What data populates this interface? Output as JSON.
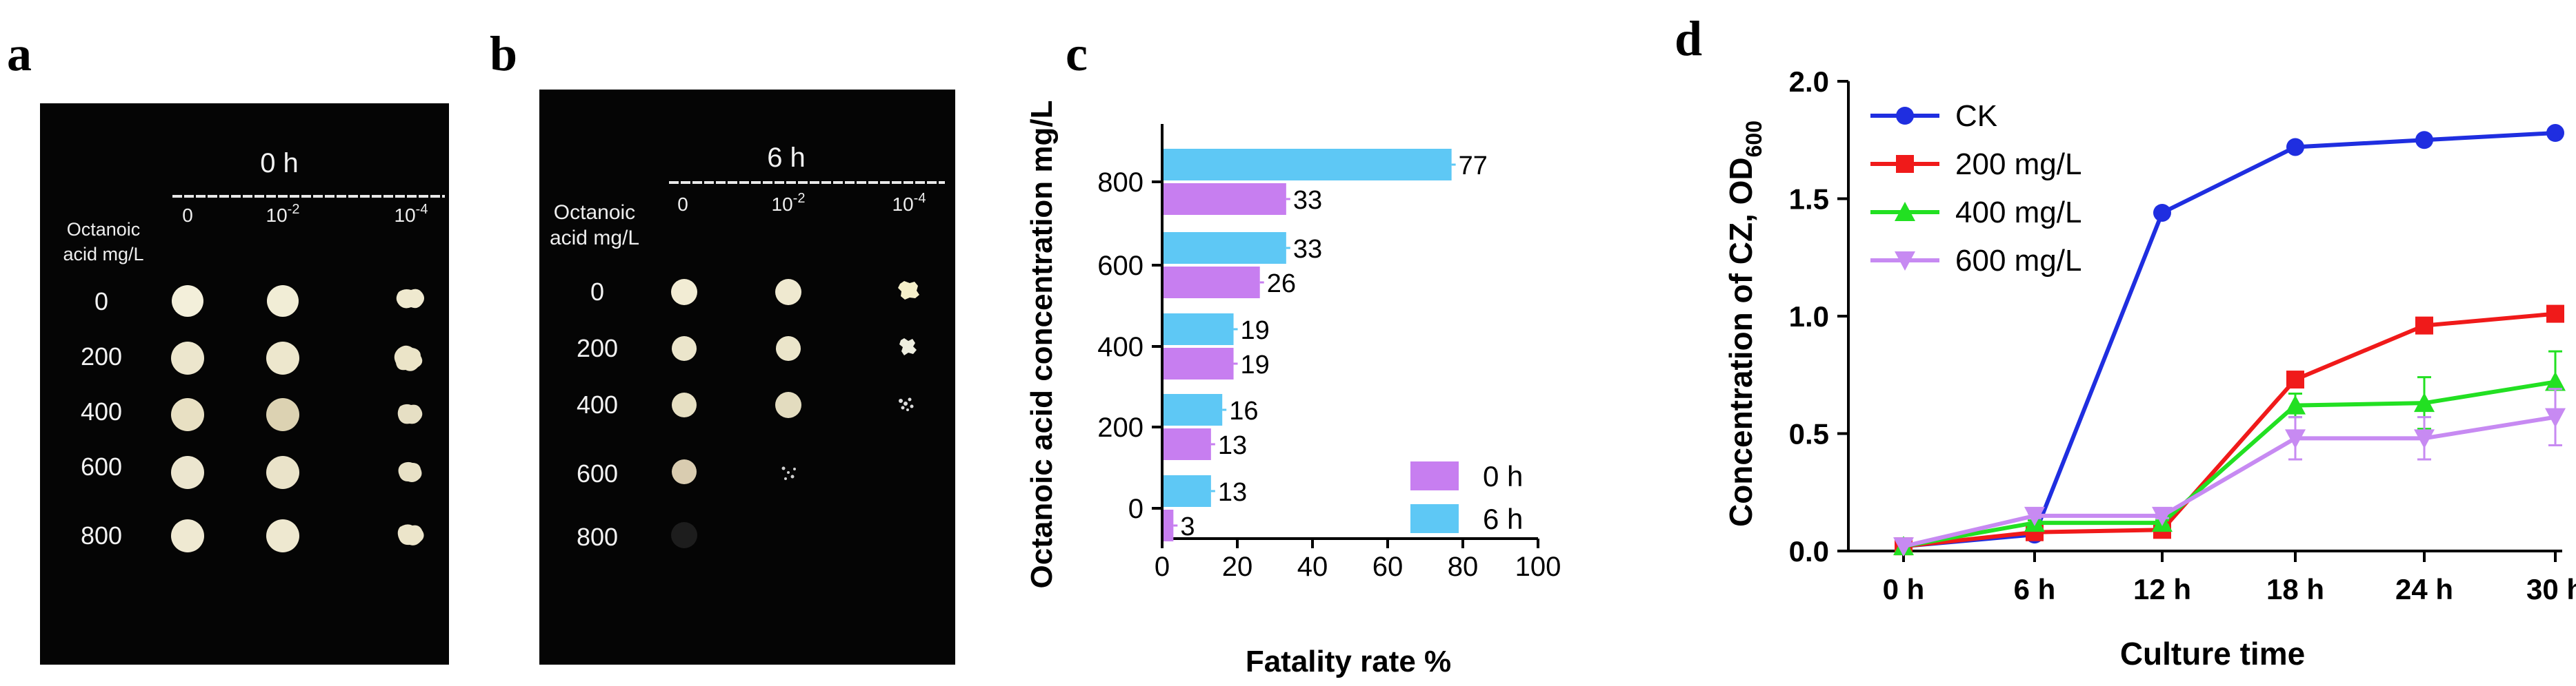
{
  "panels": {
    "a": {
      "letter": "a",
      "time": "0 h",
      "ylabel_line1": "Octanoic",
      "ylabel_line2": "acid mg/L",
      "dilutions": [
        {
          "base": "0",
          "exp": ""
        },
        {
          "base": "10",
          "exp": "-2"
        },
        {
          "base": "10",
          "exp": "-4"
        }
      ],
      "concentrations": [
        "0",
        "200",
        "400",
        "600",
        "800"
      ]
    },
    "b": {
      "letter": "b",
      "time": "6 h",
      "ylabel_line1": "Octanoic",
      "ylabel_line2": "acid mg/L",
      "dilutions": [
        {
          "base": "0",
          "exp": ""
        },
        {
          "base": "10",
          "exp": "-2"
        },
        {
          "base": "10",
          "exp": "-4"
        }
      ],
      "concentrations": [
        "0",
        "200",
        "400",
        "600",
        "800"
      ]
    },
    "c": {
      "letter": "c"
    },
    "d": {
      "letter": "d"
    }
  },
  "chart_data": [
    {
      "id": "c",
      "type": "bar",
      "orientation": "horizontal",
      "categories": [
        "800",
        "600",
        "400",
        "200",
        "0"
      ],
      "series": [
        {
          "name": "6 h",
          "color": "#5ec8f5",
          "values": [
            77,
            33,
            19,
            16,
            13
          ],
          "labels": [
            "77",
            "33",
            "19",
            "16",
            "13"
          ]
        },
        {
          "name": "0 h",
          "color": "#c77ef0",
          "values": [
            33,
            26,
            19,
            13,
            3
          ],
          "labels": [
            "33",
            "26",
            "19",
            "13",
            "3"
          ]
        }
      ],
      "xlabel": "Fatality rate  %",
      "ylabel": "Octanoic acid concentration mg/L",
      "xlim": [
        0,
        100
      ],
      "xticks": [
        "0",
        "20",
        "40",
        "60",
        "80",
        "100"
      ],
      "yticks": [
        "800",
        "600",
        "400",
        "200",
        "0"
      ],
      "legend": [
        "0 h",
        "6 h"
      ],
      "legend_position": "bottom-right"
    },
    {
      "id": "d",
      "type": "line",
      "categories": [
        "0 h",
        "6 h",
        "12 h",
        "18 h",
        "24 h",
        "30 h"
      ],
      "series": [
        {
          "name": "CK",
          "color": "#1f2ee0",
          "marker": "circle",
          "values": [
            0.02,
            0.07,
            1.44,
            1.72,
            1.75,
            1.78
          ],
          "err": [
            0,
            0,
            0.02,
            0.02,
            0.01,
            0.01
          ]
        },
        {
          "name": "200 mg/L",
          "color": "#f01a1a",
          "marker": "square",
          "values": [
            0.02,
            0.08,
            0.09,
            0.73,
            0.96,
            1.01
          ],
          "err": [
            0,
            0.01,
            0.01,
            0.03,
            0.03,
            0.03
          ]
        },
        {
          "name": "400 mg/L",
          "color": "#22e022",
          "marker": "triangle-up",
          "values": [
            0.02,
            0.12,
            0.12,
            0.62,
            0.63,
            0.72
          ],
          "err": [
            0,
            0.01,
            0.01,
            0.05,
            0.11,
            0.13
          ]
        },
        {
          "name": "600 mg/L",
          "color": "#c78af2",
          "marker": "triangle-down",
          "values": [
            0.02,
            0.15,
            0.15,
            0.48,
            0.48,
            0.57
          ],
          "err": [
            0,
            0.01,
            0.01,
            0.09,
            0.09,
            0.12
          ]
        }
      ],
      "xlabel": "Culture time",
      "ylabel_main": "Concentration of CZ, OD",
      "ylabel_sub": "600",
      "ylim": [
        0,
        2.0
      ],
      "yticks": [
        "0.0",
        "0.5",
        "1.0",
        "1.5",
        "2.0"
      ],
      "legend_position": "top-left"
    }
  ]
}
